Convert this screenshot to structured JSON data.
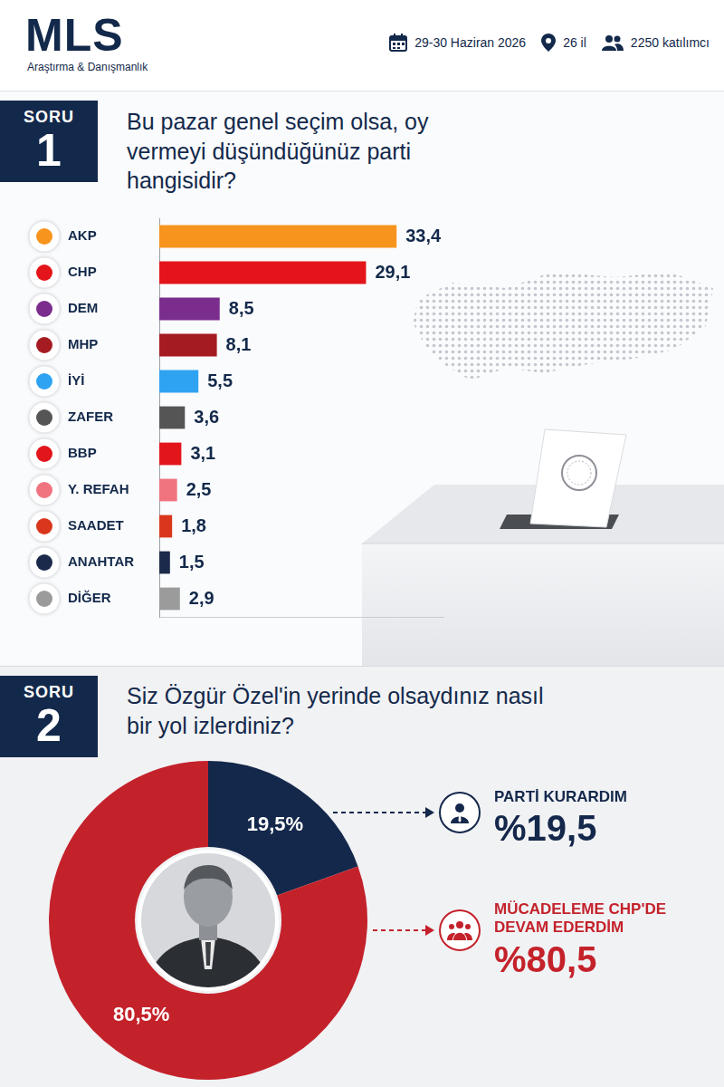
{
  "header": {
    "brand": "MLS",
    "tagline": "Araştırma & Danışmanlık",
    "date": "29-30 Haziran 2026",
    "provinces": "26 il",
    "participants": "2250 katılımcı"
  },
  "sections": [
    {
      "label": "SORU",
      "number": "1"
    },
    {
      "label": "SORU",
      "number": "2"
    }
  ],
  "chart_data": [
    {
      "type": "bar",
      "orientation": "horizontal",
      "title": "Bu pazar genel seçim olsa, oy vermeyi düşündüğünüz parti hangisidir?",
      "categories": [
        "AKP",
        "CHP",
        "DEM",
        "MHP",
        "İYİ",
        "ZAFER",
        "BBP",
        "Y. REFAH",
        "SAADET",
        "ANAHTAR",
        "DİĞER"
      ],
      "values": [
        33.4,
        29.1,
        8.5,
        8.1,
        5.5,
        3.6,
        3.1,
        2.5,
        1.8,
        1.5,
        2.9
      ],
      "value_labels": [
        "33,4",
        "29,1",
        "8,5",
        "8,1",
        "5,5",
        "3,6",
        "3,1",
        "2,5",
        "1,8",
        "1,5",
        "2,9"
      ],
      "colors": [
        "#f7941d",
        "#e3151a",
        "#7b2d8e",
        "#a51b22",
        "#2ea3f2",
        "#555555",
        "#e2151b",
        "#f07480",
        "#d9361c",
        "#1b2a4a",
        "#9b9b9b"
      ],
      "xlim": [
        0,
        40
      ],
      "data_labels": true,
      "tick_labels": "y",
      "grid": false
    },
    {
      "type": "doughnut",
      "title": "Siz Özgür Özel'in yerinde olsaydınız nasıl bir yol izlerdiniz?",
      "categories": [
        "PARTİ KURARDIM",
        "MÜCADELEME CHP'DE DEVAM EDERDİM"
      ],
      "values": [
        19.5,
        80.5
      ],
      "value_labels": [
        "19,5%",
        "80,5%"
      ],
      "callout_labels": [
        "%19,5",
        "%80,5"
      ],
      "colors": [
        "#14284b",
        "#c4222b"
      ],
      "data_labels": true
    }
  ]
}
